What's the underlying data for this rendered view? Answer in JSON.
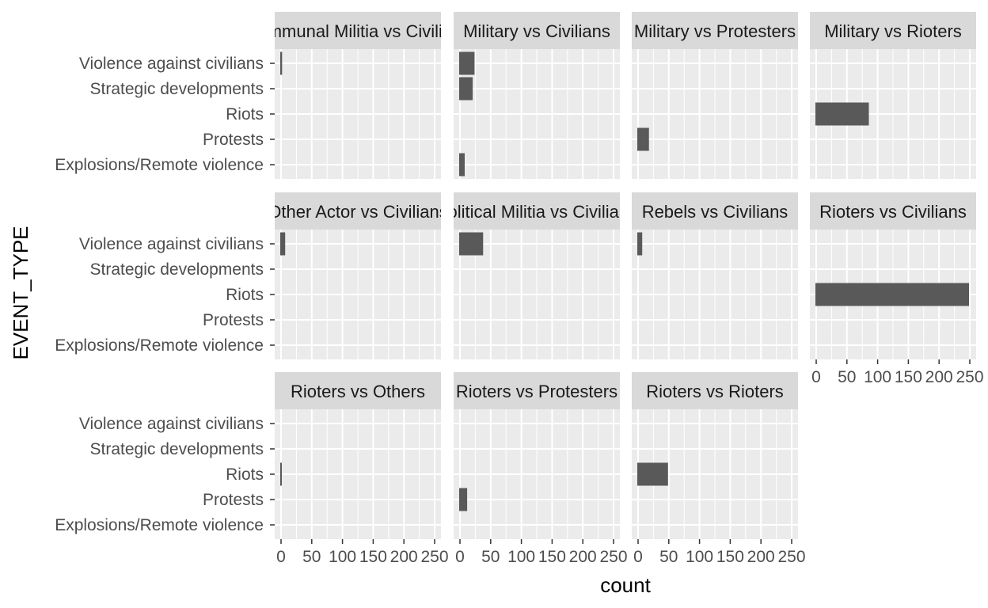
{
  "chart_data": {
    "type": "bar",
    "orientation": "horizontal",
    "facet_layout": "wrap 4 columns, free y scales",
    "xlabel": "count",
    "ylabel": "EVENT_TYPE",
    "xlim": [
      0,
      250
    ],
    "x_ticks": [
      0,
      50,
      100,
      150,
      200,
      250
    ],
    "x_tick_labels": [
      "0",
      "50",
      "100",
      "150",
      "200",
      "250"
    ],
    "categories": [
      "Violence against civilians",
      "Strategic developments",
      "Riots",
      "Protests",
      "Explosions/Remote violence"
    ],
    "grid": true,
    "legend": "none",
    "bar_color": "#595959",
    "panel_background": "#ebebeb",
    "strip_background": "#d9d9d9",
    "panels": [
      {
        "title": "Communal Militia vs Civilians",
        "values": [
          3,
          0,
          0,
          0,
          0
        ]
      },
      {
        "title": "Military vs Civilians",
        "values": [
          25,
          22,
          0,
          0,
          9
        ]
      },
      {
        "title": "Military vs Protesters",
        "values": [
          0,
          0,
          0,
          19,
          0
        ]
      },
      {
        "title": "Military vs Rioters",
        "values": [
          0,
          0,
          87,
          0,
          0
        ]
      },
      {
        "title": "Other Actor vs Civilians",
        "values": [
          8,
          0,
          0,
          0,
          0
        ]
      },
      {
        "title": "Political Militia vs Civilians",
        "values": [
          39,
          0,
          0,
          0,
          0
        ]
      },
      {
        "title": "Rebels vs Civilians",
        "values": [
          8,
          0,
          0,
          0,
          0
        ]
      },
      {
        "title": "Rioters vs Civilians",
        "values": [
          0,
          0,
          250,
          0,
          0
        ]
      },
      {
        "title": "Rioters vs Others",
        "values": [
          0,
          0,
          2,
          0,
          0
        ]
      },
      {
        "title": "Rioters vs Protesters",
        "values": [
          0,
          0,
          0,
          13,
          0
        ]
      },
      {
        "title": "Rioters vs Rioters",
        "values": [
          0,
          0,
          50,
          0,
          0
        ]
      }
    ]
  }
}
